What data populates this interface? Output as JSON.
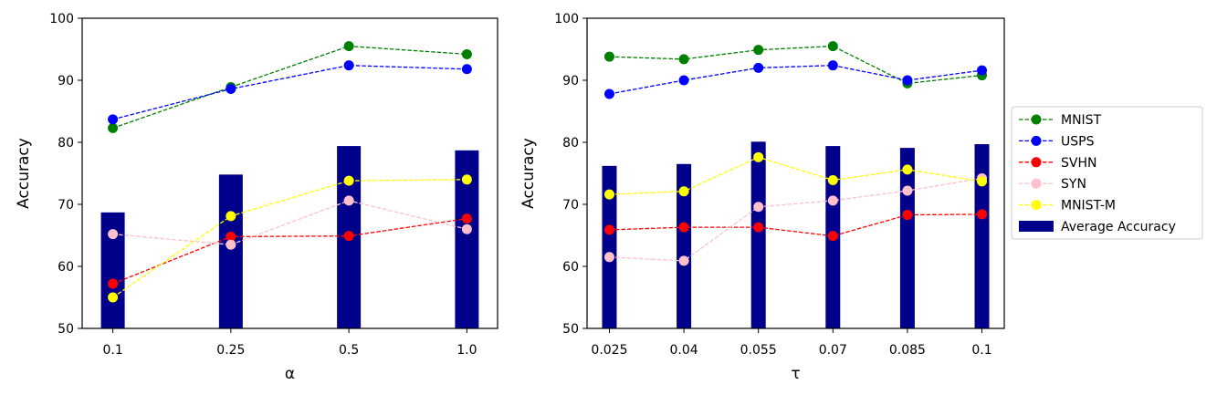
{
  "chart_data": [
    {
      "type": "bar",
      "title": "",
      "xlabel": "α",
      "ylabel": "Accuracy",
      "categories": [
        "0.1",
        "0.25",
        "0.5",
        "1.0"
      ],
      "ylim": [
        50,
        100
      ],
      "yticks": [
        "50",
        "60",
        "70",
        "80",
        "90",
        "100"
      ],
      "bar_series": {
        "name": "Average Accuracy",
        "color": "#00008b",
        "values": [
          68.7,
          74.8,
          79.4,
          78.7
        ]
      },
      "series": [
        {
          "name": "MNIST",
          "color": "#008000",
          "values": [
            82.3,
            88.9,
            95.5,
            94.2
          ]
        },
        {
          "name": "USPS",
          "color": "#0000ff",
          "values": [
            83.7,
            88.6,
            92.4,
            91.8
          ]
        },
        {
          "name": "SVHN",
          "color": "#ff0000",
          "values": [
            57.2,
            64.8,
            64.9,
            67.7
          ]
        },
        {
          "name": "SYN",
          "color": "#ffc0cb",
          "values": [
            65.2,
            63.5,
            70.6,
            66.0
          ]
        },
        {
          "name": "MNIST-M",
          "color": "#ffff00",
          "values": [
            55.0,
            68.1,
            73.8,
            74.0
          ]
        }
      ]
    },
    {
      "type": "bar",
      "title": "",
      "xlabel": "τ",
      "ylabel": "Accuracy",
      "categories": [
        "0.025",
        "0.04",
        "0.055",
        "0.07",
        "0.085",
        "0.1"
      ],
      "ylim": [
        50,
        100
      ],
      "yticks": [
        "50",
        "60",
        "70",
        "80",
        "90",
        "100"
      ],
      "bar_series": {
        "name": "Average Accuracy",
        "color": "#00008b",
        "values": [
          76.2,
          76.5,
          80.1,
          79.4,
          79.1,
          79.7
        ]
      },
      "series": [
        {
          "name": "MNIST",
          "color": "#008000",
          "values": [
            93.8,
            93.4,
            94.9,
            95.5,
            89.5,
            90.8
          ]
        },
        {
          "name": "USPS",
          "color": "#0000ff",
          "values": [
            87.8,
            90.0,
            92.0,
            92.4,
            90.0,
            91.6
          ]
        },
        {
          "name": "SVHN",
          "color": "#ff0000",
          "values": [
            65.9,
            66.3,
            66.3,
            64.9,
            68.3,
            68.4
          ]
        },
        {
          "name": "SYN",
          "color": "#ffc0cb",
          "values": [
            61.5,
            60.9,
            69.6,
            70.6,
            72.2,
            74.2
          ]
        },
        {
          "name": "MNIST-M",
          "color": "#ffff00",
          "values": [
            71.6,
            72.1,
            77.6,
            73.9,
            75.6,
            73.7
          ]
        }
      ]
    }
  ],
  "legend": {
    "placement": "right",
    "entries": [
      {
        "label": "MNIST",
        "color": "#008000",
        "kind": "line"
      },
      {
        "label": "USPS",
        "color": "#0000ff",
        "kind": "line"
      },
      {
        "label": "SVHN",
        "color": "#ff0000",
        "kind": "line"
      },
      {
        "label": "SYN",
        "color": "#ffc0cb",
        "kind": "line"
      },
      {
        "label": "MNIST-M",
        "color": "#ffff00",
        "kind": "line"
      },
      {
        "label": "Average Accuracy",
        "color": "#00008b",
        "kind": "bar"
      }
    ]
  }
}
